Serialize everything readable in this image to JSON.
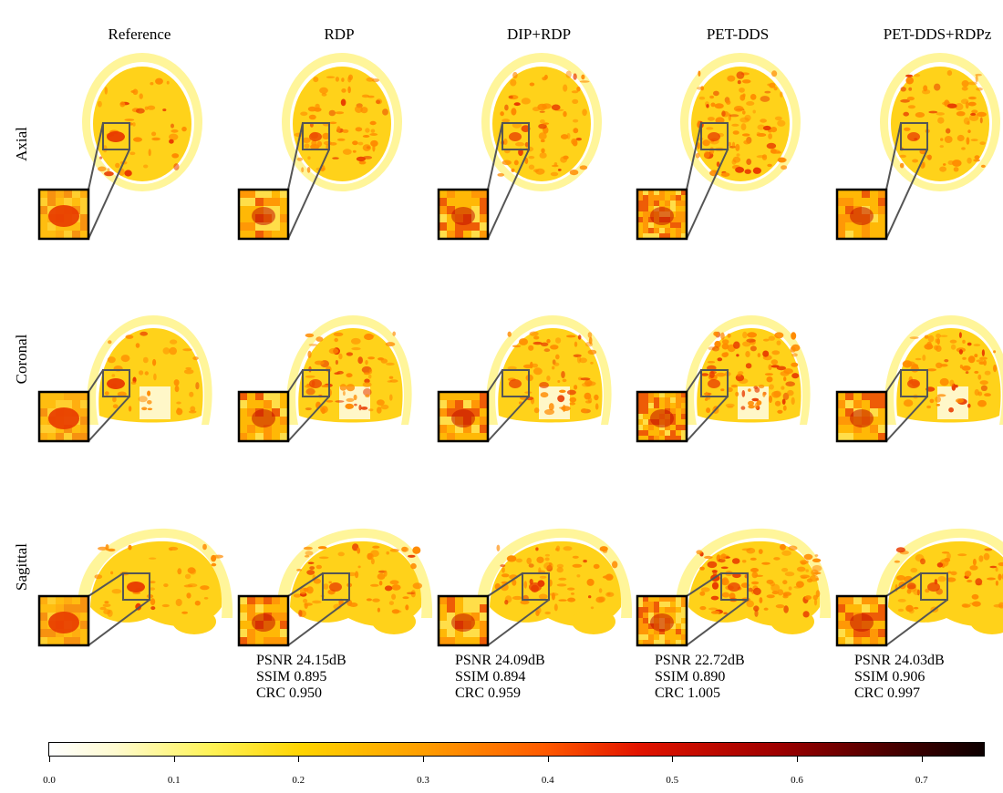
{
  "columns": [
    {
      "title": "Reference"
    },
    {
      "title": "RDP"
    },
    {
      "title": "DIP+RDP"
    },
    {
      "title": "PET-DDS"
    },
    {
      "title": "PET-DDS+RDPz"
    }
  ],
  "rows": [
    {
      "label": "Axial"
    },
    {
      "label": "Coronal"
    },
    {
      "label": "Sagittal"
    }
  ],
  "metrics": [
    {
      "psnr": "PSNR 24.15dB",
      "ssim": "SSIM 0.895",
      "crc": "CRC 0.950"
    },
    {
      "psnr": "PSNR 24.09dB",
      "ssim": "SSIM 0.894",
      "crc": "CRC 0.959"
    },
    {
      "psnr": "PSNR 22.72dB",
      "ssim": "SSIM 0.890",
      "crc": "CRC 1.005"
    },
    {
      "psnr": "PSNR 24.03dB",
      "ssim": "SSIM 0.906",
      "crc": "CRC 0.997"
    }
  ],
  "colorbar": {
    "ticks": [
      "0.0",
      "0.1",
      "0.2",
      "0.3",
      "0.4",
      "0.5",
      "0.6",
      "0.7"
    ],
    "colors": {
      "low": "#ffffff",
      "mid_low": "#fff45a",
      "mid": "#ff9e00",
      "mid_high": "#e21400",
      "high": "#0d0000"
    }
  },
  "colors": {
    "skull": "#fff59a",
    "tissue": "#ffd21a",
    "activity": "#ff8a00",
    "hot": "#e83a00",
    "hot_dark": "#c21000",
    "zoom_frame": "#555555"
  }
}
